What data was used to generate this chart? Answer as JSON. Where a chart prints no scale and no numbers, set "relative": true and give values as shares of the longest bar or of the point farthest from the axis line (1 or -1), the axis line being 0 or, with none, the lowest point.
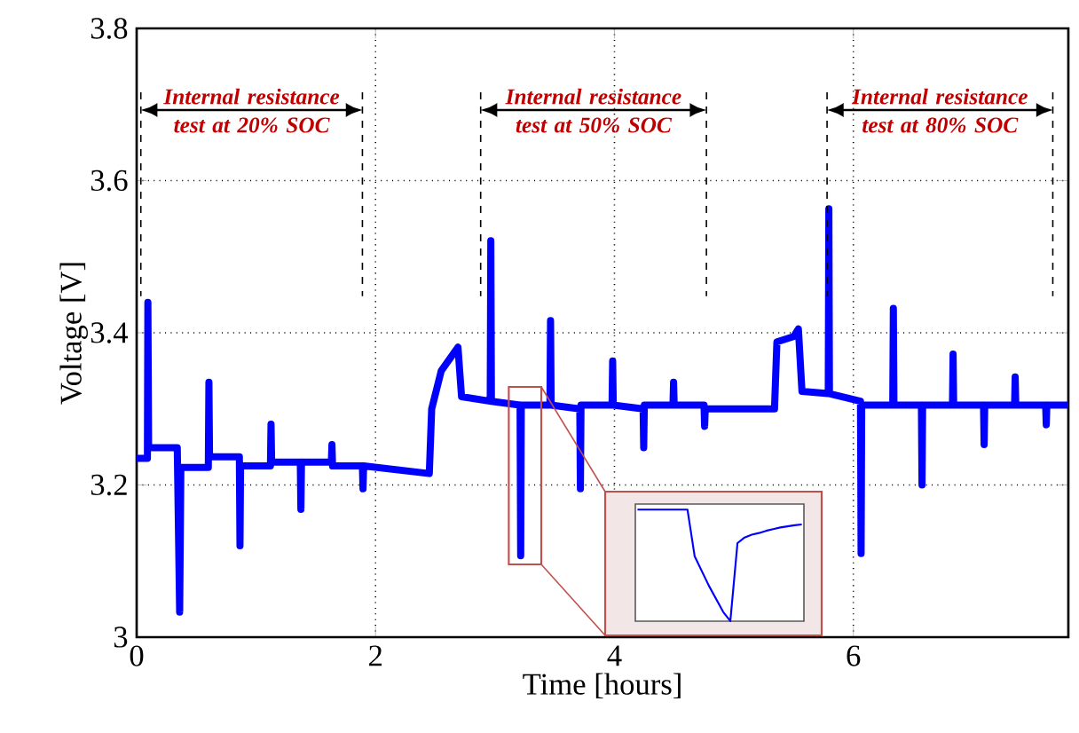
{
  "chart_data": [
    {
      "type": "line",
      "xlabel": "Time [hours]",
      "ylabel": "Voltage [V]",
      "xlim": [
        0,
        7.8
      ],
      "ylim": [
        3,
        3.8
      ],
      "xticks": [
        0,
        2,
        4,
        6
      ],
      "yticks": [
        3,
        3.2,
        3.4,
        3.6,
        3.8
      ],
      "grid": true,
      "marker": "none",
      "line_style": "solid",
      "series": [
        {
          "color": "#0000ff",
          "x": [
            0,
            0.09,
            0.094,
            0.1,
            0.34,
            0.36,
            0.37,
            0.6,
            0.605,
            0.61,
            0.86,
            0.865,
            0.87,
            1.12,
            1.125,
            1.13,
            1.37,
            1.375,
            1.38,
            1.63,
            1.635,
            1.64,
            1.89,
            1.895,
            1.9,
            2.45,
            2.47,
            2.55,
            2.69,
            2.72,
            2.96,
            2.965,
            2.97,
            3.21,
            3.215,
            3.22,
            3.46,
            3.465,
            3.47,
            3.71,
            3.715,
            3.72,
            3.98,
            3.985,
            3.99,
            4.24,
            4.245,
            4.25,
            4.49,
            4.495,
            4.5,
            4.75,
            4.755,
            4.76,
            5.34,
            5.36,
            5.5,
            5.54,
            5.57,
            5.79,
            5.795,
            5.8,
            6.06,
            6.065,
            6.07,
            6.33,
            6.335,
            6.34,
            6.57,
            6.575,
            6.58,
            6.83,
            6.835,
            6.84,
            7.09,
            7.095,
            7.1,
            7.35,
            7.355,
            7.36,
            7.61,
            7.615,
            7.62,
            7.8
          ],
          "values": [
            3.235,
            3.235,
            3.44,
            3.249,
            3.249,
            3.033,
            3.223,
            3.223,
            3.335,
            3.237,
            3.237,
            3.12,
            3.225,
            3.225,
            3.28,
            3.23,
            3.23,
            3.168,
            3.23,
            3.23,
            3.253,
            3.225,
            3.225,
            3.195,
            3.225,
            3.215,
            3.3,
            3.35,
            3.381,
            3.316,
            3.31,
            3.521,
            3.31,
            3.305,
            3.107,
            3.305,
            3.305,
            3.416,
            3.305,
            3.3,
            3.195,
            3.305,
            3.305,
            3.363,
            3.305,
            3.3,
            3.249,
            3.305,
            3.305,
            3.335,
            3.305,
            3.305,
            3.277,
            3.3,
            3.3,
            3.388,
            3.395,
            3.405,
            3.323,
            3.32,
            3.563,
            3.32,
            3.31,
            3.11,
            3.305,
            3.305,
            3.432,
            3.305,
            3.305,
            3.2,
            3.305,
            3.305,
            3.372,
            3.305,
            3.305,
            3.253,
            3.305,
            3.305,
            3.342,
            3.305,
            3.305,
            3.279,
            3.305,
            3.305
          ]
        }
      ],
      "ref_lines": [
        {
          "axis": "x",
          "value": 0.035,
          "color": "#000000",
          "line_style": "dashed"
        },
        {
          "axis": "x",
          "value": 1.89,
          "color": "#000000",
          "line_style": "dashed"
        },
        {
          "axis": "x",
          "value": 2.88,
          "color": "#000000",
          "line_style": "dashed"
        },
        {
          "axis": "x",
          "value": 4.77,
          "color": "#000000",
          "line_style": "dashed"
        },
        {
          "axis": "x",
          "value": 5.78,
          "color": "#000000",
          "line_style": "dashed"
        },
        {
          "axis": "x",
          "value": 7.67,
          "color": "#000000",
          "line_style": "dashed"
        }
      ],
      "annotations": [
        "Internal resistance test at 20% SOC",
        "Internal resistance test at 50% SOC",
        "Internal resistance test at 80% SOC"
      ]
    },
    {
      "type": "line",
      "relative": true,
      "categories": [
        null,
        null,
        null,
        null,
        null,
        null,
        null,
        null,
        null,
        null,
        null,
        null,
        null,
        null,
        null,
        null,
        null,
        null,
        null,
        null,
        null,
        null,
        null,
        null
      ],
      "series": [
        {
          "color": "#0000ff",
          "values": [
            1,
            1,
            1,
            1,
            1,
            1,
            1,
            1,
            0.583,
            0.45,
            0.317,
            0.2,
            0.083,
            0,
            0.7,
            0.75,
            0.775,
            0.79,
            0.81,
            0.825,
            0.84,
            0.85,
            0.86,
            0.867
          ]
        }
      ]
    }
  ]
}
